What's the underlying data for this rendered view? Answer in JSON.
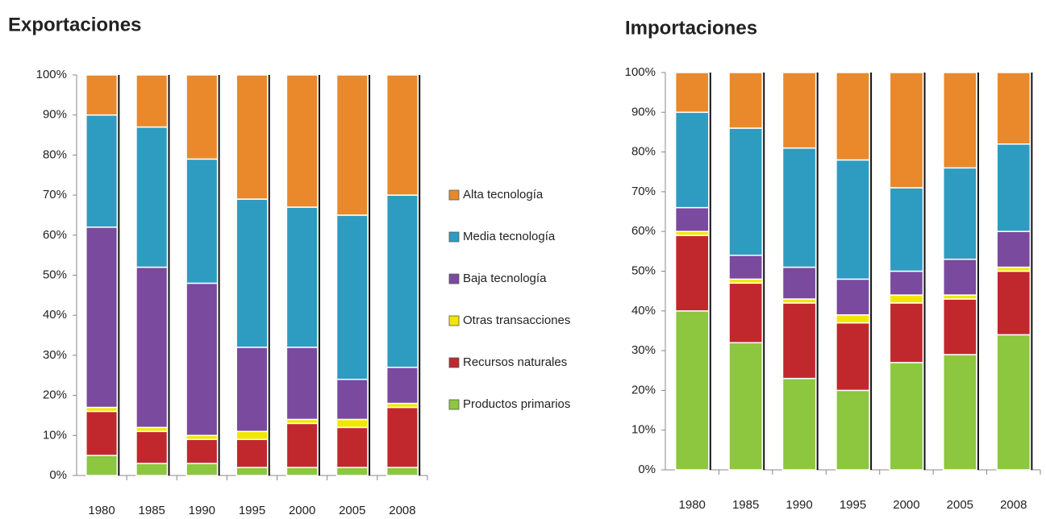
{
  "chart_data": [
    {
      "type": "stacked_bar",
      "title": "Exportaciones",
      "categories": [
        "1980",
        "1985",
        "1990",
        "1995",
        "2000",
        "2005",
        "2008"
      ],
      "ylim": [
        0,
        100
      ],
      "yticks": [
        {
          "value": 0,
          "label": "0%"
        },
        {
          "value": 10,
          "label": "10%"
        },
        {
          "value": 20,
          "label": "20%"
        },
        {
          "value": 30,
          "label": "30%"
        },
        {
          "value": 40,
          "label": "40%"
        },
        {
          "value": 50,
          "label": "50%"
        },
        {
          "value": 60,
          "label": "60%"
        },
        {
          "value": 70,
          "label": "70%"
        },
        {
          "value": 80,
          "label": "80%"
        },
        {
          "value": 90,
          "label": "90%"
        },
        {
          "value": 100,
          "label": "100%"
        }
      ],
      "series": [
        {
          "name": "Productos primarios",
          "color": "#8dc63f",
          "values": [
            5,
            3,
            3,
            2,
            2,
            2,
            2
          ]
        },
        {
          "name": "Recursos naturales",
          "color": "#c0282d",
          "values": [
            11,
            8,
            6,
            7,
            11,
            10,
            15
          ]
        },
        {
          "name": "Otras transacciones",
          "color": "#f2e600",
          "values": [
            1,
            1,
            1,
            2,
            1,
            2,
            1
          ]
        },
        {
          "name": "Baja tecnología",
          "color": "#7a4a9e",
          "values": [
            45,
            40,
            38,
            21,
            18,
            10,
            9
          ]
        },
        {
          "name": "Media tecnología",
          "color": "#2e9cc0",
          "values": [
            28,
            35,
            31,
            37,
            35,
            41,
            43
          ]
        },
        {
          "name": "Alta tecnología",
          "color": "#e9892b",
          "values": [
            10,
            13,
            21,
            31,
            33,
            35,
            30
          ]
        }
      ]
    },
    {
      "type": "stacked_bar",
      "title": "Importaciones",
      "categories": [
        "1980",
        "1985",
        "1990",
        "1995",
        "2000",
        "2005",
        "2008"
      ],
      "ylim": [
        0,
        100
      ],
      "yticks": [
        {
          "value": 0,
          "label": "0%"
        },
        {
          "value": 10,
          "label": "10%"
        },
        {
          "value": 20,
          "label": "20%"
        },
        {
          "value": 30,
          "label": "30%"
        },
        {
          "value": 40,
          "label": "40%"
        },
        {
          "value": 50,
          "label": "50%"
        },
        {
          "value": 60,
          "label": "60%"
        },
        {
          "value": 70,
          "label": "70%"
        },
        {
          "value": 80,
          "label": "80%"
        },
        {
          "value": 90,
          "label": "90%"
        },
        {
          "value": 100,
          "label": "100%"
        }
      ],
      "series": [
        {
          "color": "#8dc63f",
          "values": [
            40,
            32,
            23,
            20,
            27,
            29,
            34
          ]
        },
        {
          "color": "#c0282d",
          "values": [
            19,
            15,
            19,
            17,
            15,
            14,
            16
          ]
        },
        {
          "color": "#f2e600",
          "values": [
            1,
            1,
            1,
            2,
            2,
            1,
            1
          ]
        },
        {
          "color": "#7a4a9e",
          "values": [
            6,
            6,
            8,
            9,
            6,
            9,
            9
          ]
        },
        {
          "color": "#2e9cc0",
          "values": [
            24,
            32,
            30,
            30,
            21,
            23,
            22
          ]
        },
        {
          "color": "#e9892b",
          "values": [
            10,
            14,
            19,
            22,
            29,
            24,
            18
          ]
        }
      ]
    }
  ]
}
